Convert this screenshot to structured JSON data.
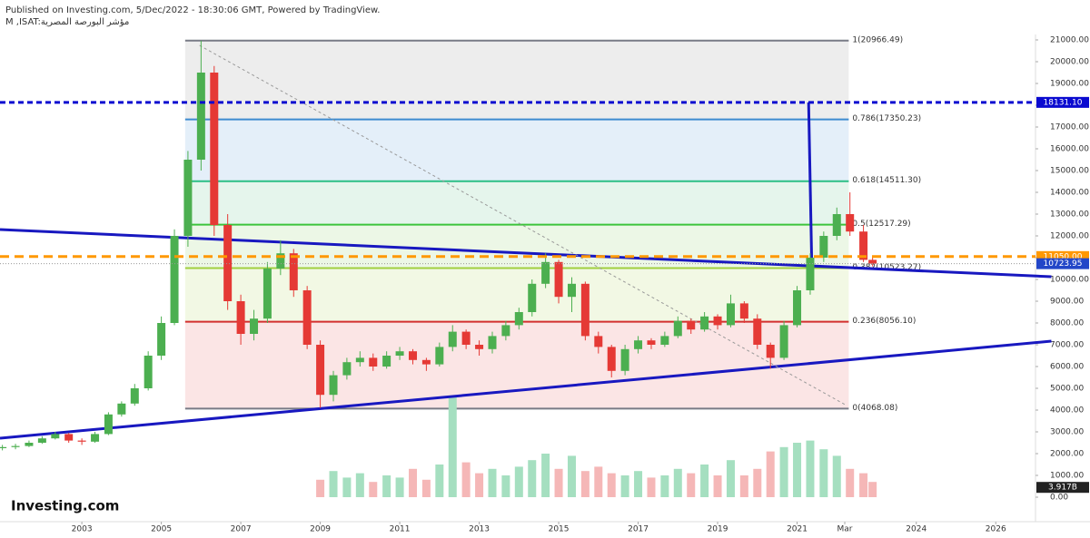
{
  "chart_data": {
    "type": "candlestick",
    "title": "Published on Investing.com, 5/Dec/2022 - 18:30:06 GMT, Powered by TradingView.",
    "subtitle": "M ,ISAT:مؤشر البورصة المصرية",
    "brand": "Investing.com",
    "xlim": [
      2000.94,
      2027.0
    ],
    "xticks": [
      2003,
      2005,
      2007,
      2009,
      2011,
      2013,
      2015,
      2017,
      2019,
      2021,
      {
        "value": 2022.2,
        "label": "Mar"
      },
      2024,
      2026
    ],
    "ylim": [
      -1125,
      21250
    ],
    "yticks": [
      {
        "value": 0,
        "label": "0.00"
      },
      {
        "value": 1000,
        "label": "1000.00"
      },
      {
        "value": 2000,
        "label": "2000.00"
      },
      {
        "value": 3000,
        "label": "3000.00"
      },
      {
        "value": 4000,
        "label": "4000.00"
      },
      {
        "value": 5000,
        "label": "5000.00"
      },
      {
        "value": 6000,
        "label": "6000.00"
      },
      {
        "value": 7000,
        "label": "7000.00"
      },
      {
        "value": 8000,
        "label": "8000.00"
      },
      {
        "value": 9000,
        "label": "9000.00"
      },
      {
        "value": 10000,
        "label": "10000.00"
      },
      {
        "value": 11000,
        "label": "11000.00"
      },
      {
        "value": 12000,
        "label": "12000.00"
      },
      {
        "value": 13000,
        "label": "13000.00"
      },
      {
        "value": 14000,
        "label": "14000.00"
      },
      {
        "value": 15000,
        "label": "15000.00"
      },
      {
        "value": 16000,
        "label": "16000.00"
      },
      {
        "value": 17000,
        "label": "17000.00"
      },
      {
        "value": 18000,
        "label": "18000.00"
      },
      {
        "value": 19000,
        "label": "19000.00"
      },
      {
        "value": 20000,
        "label": "20000.00"
      },
      {
        "value": 21000,
        "label": "21000.00"
      }
    ],
    "up_color": "#4caf50",
    "down_color": "#e53935",
    "volume_up_color": "#a5dfc0",
    "volume_down_color": "#f5b7b7",
    "series": {
      "x": [
        2001.0,
        2001.33,
        2001.67,
        2002.0,
        2002.33,
        2002.67,
        2003.0,
        2003.33,
        2003.67,
        2004.0,
        2004.33,
        2004.67,
        2005.0,
        2005.33,
        2005.67,
        2006.0,
        2006.33,
        2006.67,
        2007.0,
        2007.33,
        2007.67,
        2008.0,
        2008.33,
        2008.67,
        2009.0,
        2009.33,
        2009.67,
        2010.0,
        2010.33,
        2010.67,
        2011.0,
        2011.33,
        2011.67,
        2012.0,
        2012.33,
        2012.67,
        2013.0,
        2013.33,
        2013.67,
        2014.0,
        2014.33,
        2014.67,
        2015.0,
        2015.33,
        2015.67,
        2016.0,
        2016.33,
        2016.67,
        2017.0,
        2017.33,
        2017.67,
        2018.0,
        2018.33,
        2018.67,
        2019.0,
        2019.33,
        2019.67,
        2020.0,
        2020.33,
        2020.67,
        2021.0,
        2021.33,
        2021.67,
        2022.0,
        2022.33,
        2022.67,
        2022.9
      ],
      "open": [
        2250,
        2300,
        2350,
        2500,
        2700,
        2900,
        2600,
        2550,
        2900,
        3800,
        4300,
        5000,
        6500,
        8000,
        12000,
        15500,
        19500,
        12500,
        9000,
        7500,
        8200,
        10500,
        11200,
        9500,
        7000,
        4700,
        5600,
        6200,
        6400,
        6000,
        6500,
        6700,
        6300,
        6100,
        6900,
        7600,
        7000,
        6800,
        7400,
        7900,
        8500,
        9800,
        10800,
        9200,
        9800,
        7400,
        6900,
        5800,
        6800,
        7200,
        7000,
        7400,
        8100,
        7700,
        8300,
        7900,
        8900,
        8200,
        7000,
        6400,
        7900,
        9500,
        11000,
        12000,
        13000,
        12200,
        10900
      ],
      "high": [
        2400,
        2450,
        2600,
        2800,
        3000,
        2950,
        2700,
        3000,
        3900,
        4400,
        5200,
        6700,
        8300,
        12300,
        15900,
        20966,
        19800,
        13000,
        9300,
        8600,
        10800,
        11800,
        11400,
        9700,
        7200,
        5800,
        6400,
        6700,
        6600,
        6700,
        6900,
        6800,
        6400,
        7100,
        7900,
        7700,
        7200,
        7600,
        8100,
        8700,
        10000,
        11200,
        10900,
        10100,
        9900,
        7600,
        7000,
        7000,
        7400,
        7300,
        7600,
        8300,
        8200,
        8500,
        8400,
        9300,
        9000,
        8400,
        7100,
        8100,
        9700,
        11200,
        12200,
        13300,
        14000,
        12500,
        11100
      ],
      "low": [
        2150,
        2200,
        2300,
        2450,
        2650,
        2500,
        2400,
        2500,
        2850,
        3700,
        4200,
        4900,
        6300,
        7900,
        11500,
        15000,
        12000,
        8600,
        7000,
        7200,
        8000,
        10200,
        9200,
        6800,
        4100,
        4400,
        5400,
        6000,
        5800,
        5900,
        6300,
        6100,
        5800,
        6000,
        6700,
        6800,
        6500,
        6600,
        7200,
        7700,
        8300,
        9600,
        8900,
        8500,
        7200,
        6600,
        5500,
        5600,
        6600,
        6800,
        6900,
        7300,
        7500,
        7600,
        7700,
        7800,
        8000,
        6800,
        5900,
        6300,
        7800,
        9300,
        10800,
        11800,
        12000,
        10800,
        10600
      ],
      "close": [
        2300,
        2350,
        2500,
        2700,
        2900,
        2600,
        2550,
        2900,
        3800,
        4300,
        5000,
        6500,
        8000,
        12000,
        15500,
        19500,
        12500,
        9000,
        7500,
        8200,
        10500,
        11200,
        9500,
        7000,
        4700,
        5600,
        6200,
        6400,
        6000,
        6500,
        6700,
        6300,
        6100,
        6900,
        7600,
        7000,
        6800,
        7400,
        7900,
        8500,
        9800,
        10800,
        9200,
        9800,
        7400,
        6900,
        5800,
        6800,
        7200,
        7000,
        7400,
        8100,
        7700,
        8300,
        7900,
        8900,
        8200,
        7000,
        6400,
        7900,
        9500,
        11000,
        12000,
        13000,
        12200,
        10900,
        10723.95
      ],
      "volume": [
        null,
        null,
        null,
        null,
        null,
        null,
        null,
        null,
        null,
        null,
        null,
        null,
        null,
        null,
        null,
        null,
        null,
        null,
        null,
        null,
        null,
        null,
        null,
        null,
        800,
        1200,
        900,
        1100,
        700,
        1000,
        900,
        1300,
        800,
        1500,
        4600,
        1600,
        1100,
        1300,
        1000,
        1400,
        1700,
        2000,
        1300,
        1900,
        1200,
        1400,
        1100,
        1000,
        1200,
        900,
        1000,
        1300,
        1100,
        1500,
        1000,
        1700,
        1000,
        1300,
        2100,
        2300,
        2500,
        2600,
        2200,
        1900,
        1300,
        1100,
        700
      ]
    },
    "volume_label": "3.917B",
    "fib_x": [
      2005.6,
      2022.3
    ],
    "fib_levels": [
      {
        "value": 20966.49,
        "label": "1(20966.49)",
        "color": "#787b86",
        "band": "#ededed"
      },
      {
        "value": 17350.23,
        "label": "0.786(17350.23)",
        "color": "#3d8bd0",
        "band": "#e4eff9"
      },
      {
        "value": 14511.3,
        "label": "0.618(14511.30)",
        "color": "#2bbf85",
        "band": "#e5f5ec"
      },
      {
        "value": 12517.29,
        "label": "0.5(12517.29)",
        "color": "#3cc43c",
        "band": "#ecf7e6"
      },
      {
        "value": 10523.27,
        "label": "0.382(10523.27)",
        "color": "#a0cf3f",
        "band": "#f2f8e4"
      },
      {
        "value": 8056.1,
        "label": "0.236(8056.10)",
        "color": "#d32f2f",
        "band": "#fbe5e5"
      },
      {
        "value": 4068.08,
        "label": "0(4068.08)",
        "color": "#787b86",
        "band": null
      }
    ],
    "hlines": [
      {
        "value": 18131.1,
        "label": "18131.10",
        "color": "#0a0ad0",
        "dash": "6,4",
        "width": 3
      },
      {
        "value": 11050.0,
        "label": "11050.00",
        "color": "#ff9800",
        "dash": "10,6",
        "width": 3
      },
      {
        "value": 10723.95,
        "label": "10723.95",
        "color": "#999999",
        "dash": "1,2",
        "width": 1
      }
    ],
    "trendlines": [
      {
        "points": [
          [
            2000.94,
            12292
          ],
          [
            2027.4,
            10125
          ]
        ],
        "color": "#1818c0",
        "dash": null
      },
      {
        "points": [
          [
            2000.94,
            2708
          ],
          [
            2027.4,
            7167
          ]
        ],
        "color": "#1818c0",
        "dash": null
      },
      {
        "points": [
          [
            2021.29,
            18131.1
          ],
          [
            2021.37,
            10625
          ]
        ],
        "color": "#1818c0",
        "dash": null
      },
      {
        "points": [
          [
            2005.96,
            20750
          ],
          [
            2022.25,
            4208
          ]
        ],
        "color": "#999999",
        "dash": "3,3"
      }
    ]
  }
}
